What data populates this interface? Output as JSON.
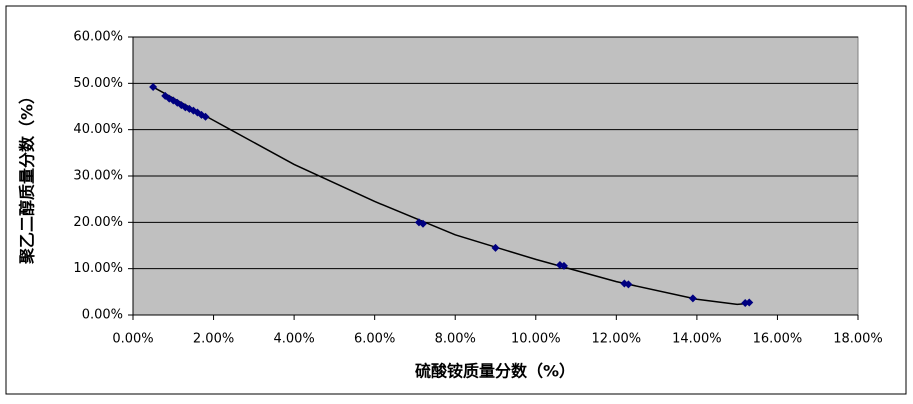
{
  "chart_data": {
    "type": "scatter",
    "x_label": "硫酸铵质量分数（%）",
    "y_label": "聚乙二醇质量分数（%）",
    "x": [
      0.5,
      0.8,
      0.9,
      1.0,
      1.1,
      1.2,
      1.3,
      1.4,
      1.5,
      1.6,
      1.7,
      1.8,
      7.1,
      7.2,
      9.0,
      10.6,
      10.7,
      12.2,
      12.3,
      13.9,
      15.2,
      15.3
    ],
    "series": [
      {
        "color": "#000080",
        "values": [
          49.2,
          47.3,
          46.7,
          46.3,
          45.8,
          45.3,
          44.8,
          44.5,
          44.1,
          43.7,
          43.2,
          42.8,
          20.0,
          19.7,
          14.5,
          10.8,
          10.6,
          6.8,
          6.6,
          3.6,
          2.6,
          2.7
        ]
      }
    ],
    "trendline": {
      "color": "#000000",
      "x": [
        0.5,
        2,
        4,
        6,
        8,
        10,
        12,
        14,
        15,
        15.3
      ],
      "y": [
        49.2,
        42,
        32.5,
        24.5,
        17.3,
        12,
        7.2,
        3.4,
        2.3,
        2.5
      ]
    },
    "xlim": [
      0,
      18
    ],
    "xticks": [
      {
        "value": 0,
        "label": "0.00%"
      },
      {
        "value": 2,
        "label": "2.00%"
      },
      {
        "value": 4,
        "label": "4.00%"
      },
      {
        "value": 6,
        "label": "6.00%"
      },
      {
        "value": 8,
        "label": "8.00%"
      },
      {
        "value": 10,
        "label": "10.00%"
      },
      {
        "value": 12,
        "label": "12.00%"
      },
      {
        "value": 14,
        "label": "14.00%"
      },
      {
        "value": 16,
        "label": "16.00%"
      },
      {
        "value": 18,
        "label": "18.00%"
      }
    ],
    "ylim": [
      0,
      60
    ],
    "yticks": [
      {
        "value": 0,
        "label": "0.00%"
      },
      {
        "value": 10,
        "label": "10.00%"
      },
      {
        "value": 20,
        "label": "20.00%"
      },
      {
        "value": 30,
        "label": "30.00%"
      },
      {
        "value": 40,
        "label": "40.00%"
      },
      {
        "value": 50,
        "label": "50.00%"
      },
      {
        "value": 60,
        "label": "60.00%"
      }
    ],
    "grid": true,
    "plot_background": "#c0c0c0"
  }
}
